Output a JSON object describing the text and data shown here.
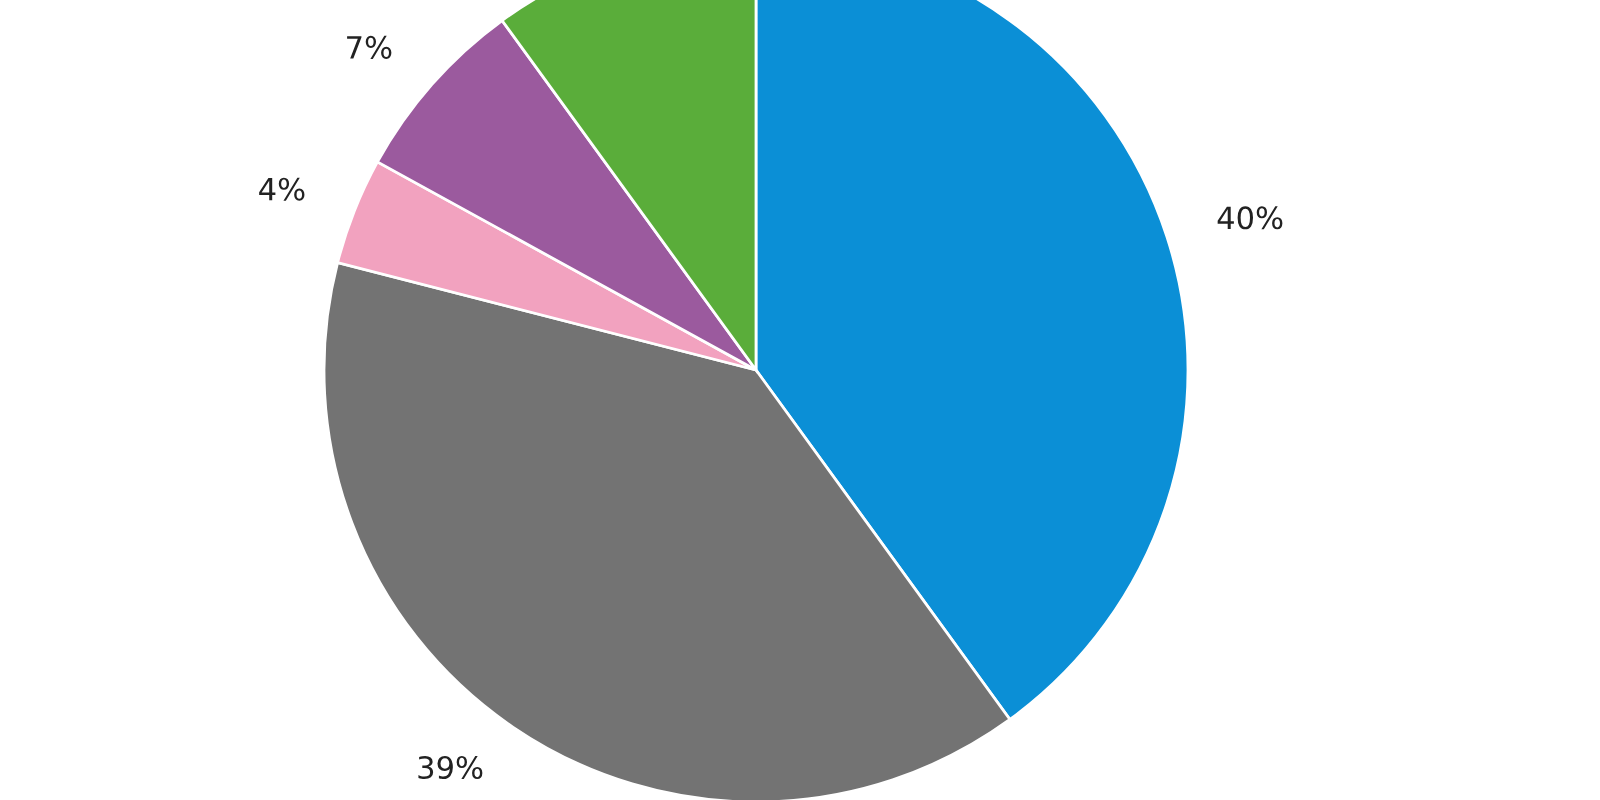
{
  "chart_data": {
    "type": "pie",
    "categories": [
      null,
      null,
      null,
      null,
      null
    ],
    "values": [
      40,
      39,
      4,
      7,
      10
    ],
    "value_labels": [
      "40%",
      "39%",
      "4%",
      "7%",
      null
    ],
    "colors": [
      "#0b8fd6",
      "#737373",
      "#f2a2bf",
      "#9b5a9e",
      "#5aad3a"
    ]
  }
}
